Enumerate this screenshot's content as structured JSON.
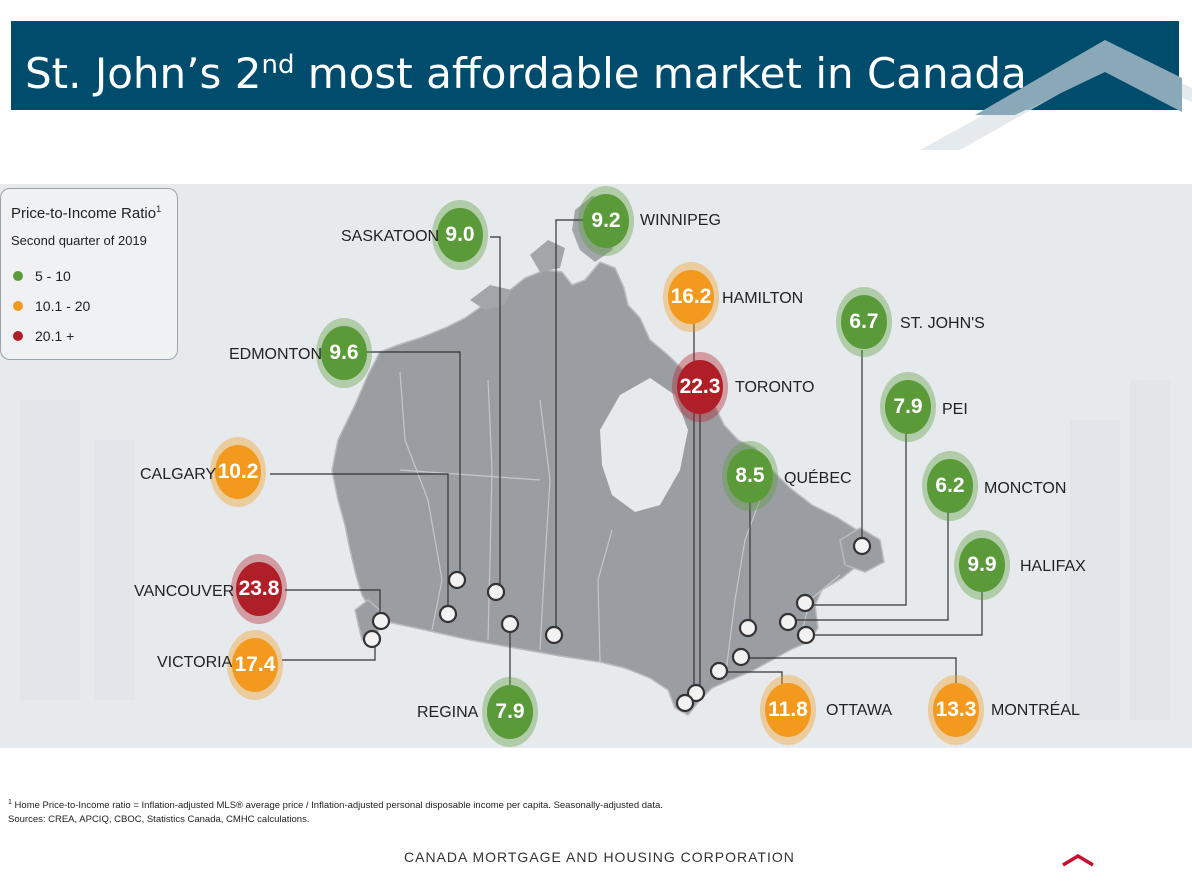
{
  "slide": {
    "title_main": "St. John’s 2",
    "title_sup": "nd",
    "title_rest": " most affordable market in Canada"
  },
  "legend": {
    "title": "Price-to-Income Ratio",
    "title_sup": "1",
    "subtitle": "Second quarter of 2019",
    "items": [
      {
        "label": "5 - 10",
        "color": "#5a9a38"
      },
      {
        "label": "10.1 - 20",
        "color": "#f39a1e"
      },
      {
        "label": "20.1 +",
        "color": "#b01e27"
      }
    ]
  },
  "colors": {
    "green": "#5a9a38",
    "orange": "#f39a1e",
    "red": "#b01e27",
    "navy": "#004c6c"
  },
  "cities": [
    {
      "name": "SASKATOON",
      "value": "9.0",
      "color": "green"
    },
    {
      "name": "WINNIPEG",
      "value": "9.2",
      "color": "green"
    },
    {
      "name": "HAMILTON",
      "value": "16.2",
      "color": "orange"
    },
    {
      "name": "ST. JOHN'S",
      "value": "6.7",
      "color": "green"
    },
    {
      "name": "EDMONTON",
      "value": "9.6",
      "color": "green"
    },
    {
      "name": "TORONTO",
      "value": "22.3",
      "color": "red"
    },
    {
      "name": "PEI",
      "value": "7.9",
      "color": "green"
    },
    {
      "name": "CALGARY",
      "value": "10.2",
      "color": "orange"
    },
    {
      "name": "QUÉBEC",
      "value": "8.5",
      "color": "green"
    },
    {
      "name": "MONCTON",
      "value": "6.2",
      "color": "green"
    },
    {
      "name": "HALIFAX",
      "value": "9.9",
      "color": "green"
    },
    {
      "name": "VANCOUVER",
      "value": "23.8",
      "color": "red"
    },
    {
      "name": "VICTORIA",
      "value": "17.4",
      "color": "orange"
    },
    {
      "name": "REGINA",
      "value": "7.9",
      "color": "green"
    },
    {
      "name": "OTTAWA",
      "value": "11.8",
      "color": "orange"
    },
    {
      "name": "MONTRÉAL",
      "value": "13.3",
      "color": "orange"
    }
  ],
  "footnote": {
    "sup": "1",
    "text": " Home Price-to-Income ratio = Inflation-adjusted MLS® average price / Inflation-adjusted personal disposable income per capita. Seasonally-adjusted data.",
    "sources": "Sources: CREA, APCIQ, CBOC, Statistics Canada, CMHC calculations."
  },
  "footer": {
    "organization": "CANADA MORTGAGE AND HOUSING CORPORATION"
  }
}
